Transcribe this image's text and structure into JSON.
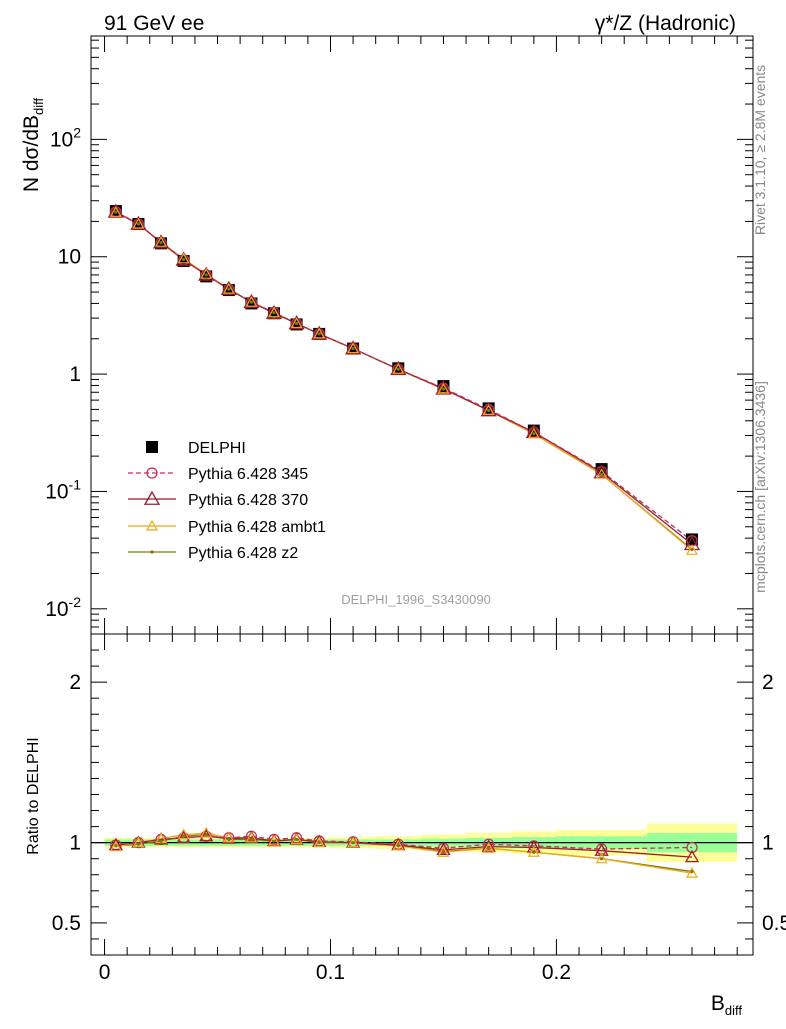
{
  "header": {
    "left": "91 GeV ee",
    "right": "γ*/Z (Hadronic)"
  },
  "side_text": {
    "rivet": "Rivet 3.1.10, ≥ 2.8M events",
    "mcplots": "mcplots.cern.ch [arXiv:1306.3436]"
  },
  "watermark": "DELPHI_1996_S3430090",
  "colors": {
    "data": "#000000",
    "p345": "#c0325a",
    "p370": "#9b1b30",
    "ambt1": "#f0a818",
    "z2": "#7a7a10",
    "band_inner": "#99ff99",
    "band_outer": "#ffff99"
  },
  "chart_data": [
    {
      "type": "line",
      "panel": "main",
      "ylabel": "N dσ/dB",
      "ylabel_sub": "diff",
      "yscale": "log",
      "ylim": [
        0.0061,
        760
      ],
      "xlim": [
        -0.006,
        0.287
      ],
      "grid": false,
      "legend_position": "bottom-left",
      "y_ticks": [
        {
          "value": 0.01,
          "label": "10",
          "exp": "-2"
        },
        {
          "value": 0.1,
          "label": "10",
          "exp": "-1"
        },
        {
          "value": 1,
          "label": "1",
          "exp": ""
        },
        {
          "value": 10,
          "label": "10",
          "exp": ""
        },
        {
          "value": 100,
          "label": "10",
          "exp": "2"
        }
      ],
      "x": [
        0.005,
        0.015,
        0.025,
        0.035,
        0.045,
        0.055,
        0.065,
        0.075,
        0.085,
        0.095,
        0.11,
        0.13,
        0.15,
        0.17,
        0.19,
        0.22,
        0.26
      ],
      "series": [
        {
          "name": "DELPHI",
          "key": "data",
          "style": "data",
          "values": [
            24.5,
            19.0,
            13.0,
            9.2,
            6.8,
            5.2,
            4.0,
            3.3,
            2.65,
            2.2,
            1.65,
            1.12,
            0.79,
            0.51,
            0.33,
            0.155,
            0.039
          ]
        },
        {
          "name": "Pythia 6.428 345",
          "key": "p345",
          "style": "circle-dashed",
          "values": [
            24.1,
            19.0,
            13.2,
            9.4,
            7.0,
            5.3,
            4.1,
            3.36,
            2.7,
            2.2,
            1.65,
            1.1,
            0.76,
            0.5,
            0.32,
            0.148,
            0.038
          ]
        },
        {
          "name": "Pythia 6.428 370",
          "key": "p370",
          "style": "triangle-open",
          "values": [
            24.1,
            19.0,
            13.2,
            9.4,
            7.0,
            5.3,
            4.1,
            3.3,
            2.7,
            2.2,
            1.65,
            1.1,
            0.75,
            0.49,
            0.32,
            0.145,
            0.0355
          ]
        },
        {
          "name": "Pythia 6.428 ambt1",
          "key": "ambt1",
          "style": "triangle-small",
          "values": [
            23.9,
            19.0,
            13.3,
            9.6,
            7.1,
            5.3,
            4.1,
            3.33,
            2.7,
            2.2,
            1.65,
            1.1,
            0.745,
            0.49,
            0.31,
            0.14,
            0.0315
          ]
        },
        {
          "name": "Pythia 6.428 z2",
          "key": "z2",
          "style": "dot",
          "values": [
            24.0,
            19.0,
            13.2,
            9.5,
            7.0,
            5.3,
            4.1,
            3.33,
            2.7,
            2.2,
            1.65,
            1.1,
            0.745,
            0.49,
            0.31,
            0.14,
            0.032
          ]
        }
      ]
    },
    {
      "type": "line",
      "panel": "ratio",
      "ylabel": "Ratio to DELPHI",
      "xlabel": "B",
      "xlabel_sub": "diff",
      "ylim": [
        0.3,
        2.3
      ],
      "xlim": [
        -0.006,
        0.287
      ],
      "y_ticks": [
        0.5,
        1,
        2
      ],
      "y_tick_labels": [
        "0.5",
        "1",
        "2"
      ],
      "x_ticks": [
        0,
        0.1,
        0.2
      ],
      "x_tick_labels": [
        "0",
        "0.1",
        "0.2"
      ],
      "bands": [
        {
          "x0": 0.0,
          "x1": 0.01,
          "inner": 0.02,
          "outer": 0.03
        },
        {
          "x0": 0.01,
          "x1": 0.02,
          "inner": 0.02,
          "outer": 0.03
        },
        {
          "x0": 0.02,
          "x1": 0.03,
          "inner": 0.02,
          "outer": 0.03
        },
        {
          "x0": 0.03,
          "x1": 0.04,
          "inner": 0.02,
          "outer": 0.03
        },
        {
          "x0": 0.04,
          "x1": 0.05,
          "inner": 0.02,
          "outer": 0.03
        },
        {
          "x0": 0.05,
          "x1": 0.06,
          "inner": 0.02,
          "outer": 0.03
        },
        {
          "x0": 0.06,
          "x1": 0.07,
          "inner": 0.02,
          "outer": 0.03
        },
        {
          "x0": 0.07,
          "x1": 0.08,
          "inner": 0.02,
          "outer": 0.03
        },
        {
          "x0": 0.08,
          "x1": 0.09,
          "inner": 0.02,
          "outer": 0.03
        },
        {
          "x0": 0.09,
          "x1": 0.1,
          "inner": 0.02,
          "outer": 0.03
        },
        {
          "x0": 0.1,
          "x1": 0.12,
          "inner": 0.02,
          "outer": 0.035
        },
        {
          "x0": 0.12,
          "x1": 0.14,
          "inner": 0.02,
          "outer": 0.04
        },
        {
          "x0": 0.14,
          "x1": 0.16,
          "inner": 0.025,
          "outer": 0.05
        },
        {
          "x0": 0.16,
          "x1": 0.18,
          "inner": 0.03,
          "outer": 0.06
        },
        {
          "x0": 0.18,
          "x1": 0.2,
          "inner": 0.035,
          "outer": 0.07
        },
        {
          "x0": 0.2,
          "x1": 0.24,
          "inner": 0.04,
          "outer": 0.08
        },
        {
          "x0": 0.24,
          "x1": 0.28,
          "inner": 0.06,
          "outer": 0.12
        }
      ],
      "x": [
        0.005,
        0.015,
        0.025,
        0.035,
        0.045,
        0.055,
        0.065,
        0.075,
        0.085,
        0.095,
        0.11,
        0.13,
        0.15,
        0.17,
        0.19,
        0.22,
        0.26
      ],
      "series": [
        {
          "name": "Pythia 6.428 345",
          "key": "p345",
          "style": "circle-dashed",
          "values": [
            0.985,
            1.0,
            1.02,
            1.03,
            1.04,
            1.03,
            1.04,
            1.02,
            1.03,
            1.01,
            1.005,
            0.99,
            0.965,
            0.99,
            0.98,
            0.96,
            0.97
          ]
        },
        {
          "name": "Pythia 6.428 370",
          "key": "p370",
          "style": "triangle-open",
          "values": [
            0.985,
            1.0,
            1.02,
            1.03,
            1.04,
            1.025,
            1.03,
            1.01,
            1.02,
            1.005,
            1.0,
            0.985,
            0.955,
            0.975,
            0.97,
            0.95,
            0.91
          ]
        },
        {
          "name": "Pythia 6.428 ambt1",
          "key": "ambt1",
          "style": "triangle-small",
          "values": [
            0.975,
            1.0,
            1.025,
            1.05,
            1.06,
            1.03,
            1.03,
            1.01,
            1.02,
            1.0,
            1.0,
            0.98,
            0.94,
            0.965,
            0.94,
            0.9,
            0.81
          ]
        },
        {
          "name": "Pythia 6.428 z2",
          "key": "z2",
          "style": "dot",
          "values": [
            0.98,
            0.99,
            1.01,
            1.04,
            1.05,
            1.02,
            1.02,
            1.01,
            1.02,
            1.0,
            1.0,
            0.98,
            0.945,
            0.965,
            0.94,
            0.9,
            0.82
          ]
        }
      ]
    }
  ]
}
